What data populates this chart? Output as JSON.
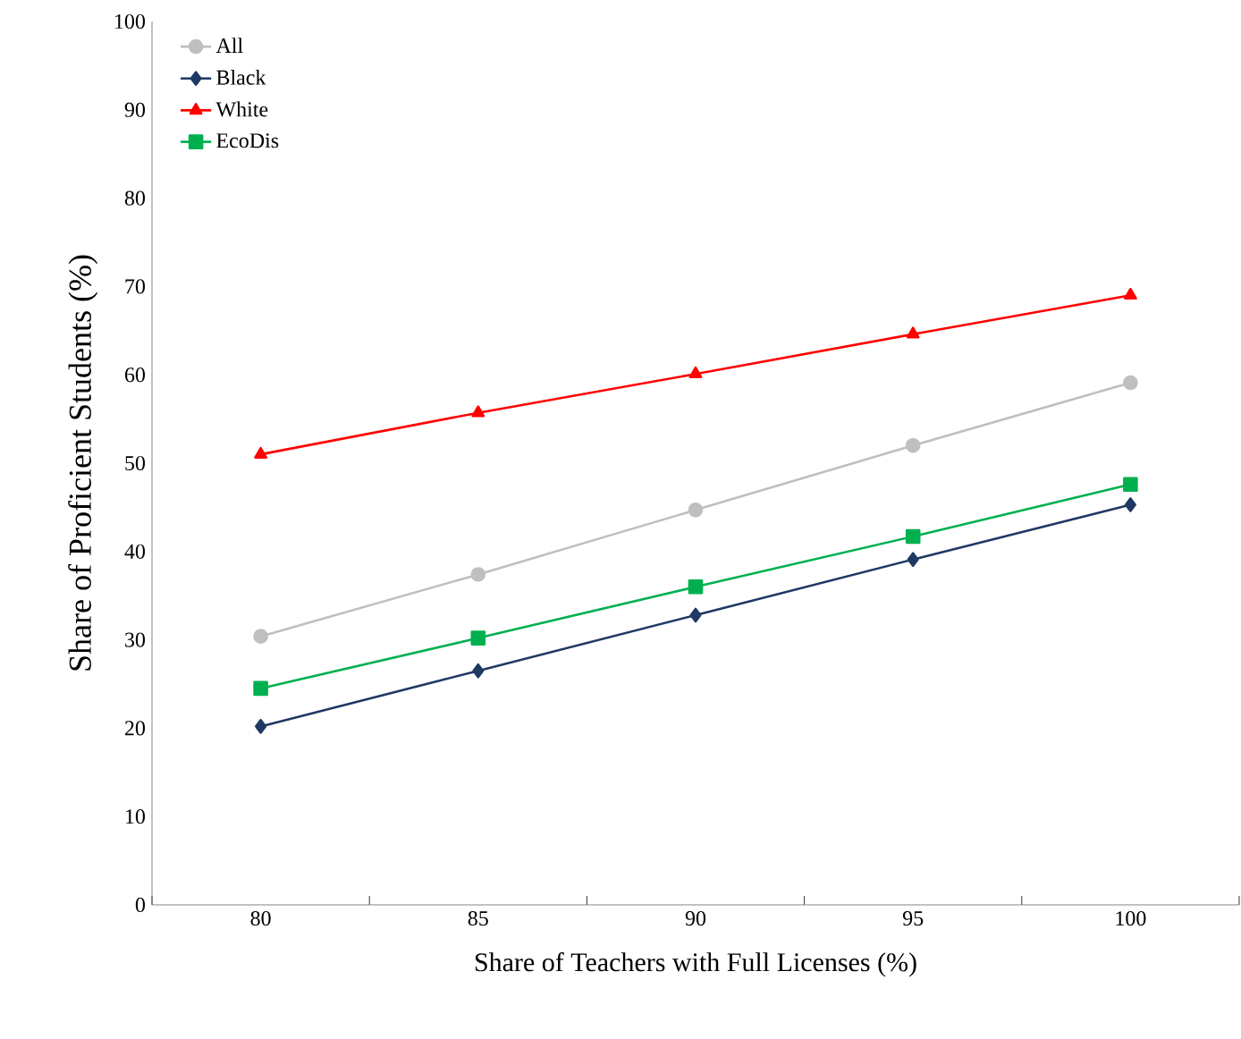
{
  "chart_data": {
    "type": "line",
    "xlabel": "Share of Teachers with Full Licenses (%)",
    "ylabel": "Share of Proficient Students (%)",
    "categories": [
      "80",
      "85",
      "90",
      "95",
      "100"
    ],
    "ylim": [
      0,
      100
    ],
    "yticks": [
      0,
      10,
      20,
      30,
      40,
      50,
      60,
      70,
      80,
      90,
      100
    ],
    "grid": false,
    "legend": "top left",
    "line_style": "solid",
    "series": [
      {
        "name": "All",
        "color": "#bfbfbf",
        "marker": "circle",
        "values": [
          30.4,
          37.4,
          44.7,
          52.0,
          59.1
        ]
      },
      {
        "name": "Black",
        "color": "#1f3864",
        "marker": "diamond",
        "values": [
          20.2,
          26.5,
          32.8,
          39.1,
          45.3
        ]
      },
      {
        "name": "White",
        "color": "#ff0000",
        "marker": "triangle",
        "values": [
          51.0,
          55.7,
          60.1,
          64.6,
          69.0
        ]
      },
      {
        "name": "EcoDis",
        "color": "#00b050",
        "marker": "square",
        "values": [
          24.5,
          30.2,
          36.0,
          41.7,
          47.6
        ]
      }
    ]
  }
}
